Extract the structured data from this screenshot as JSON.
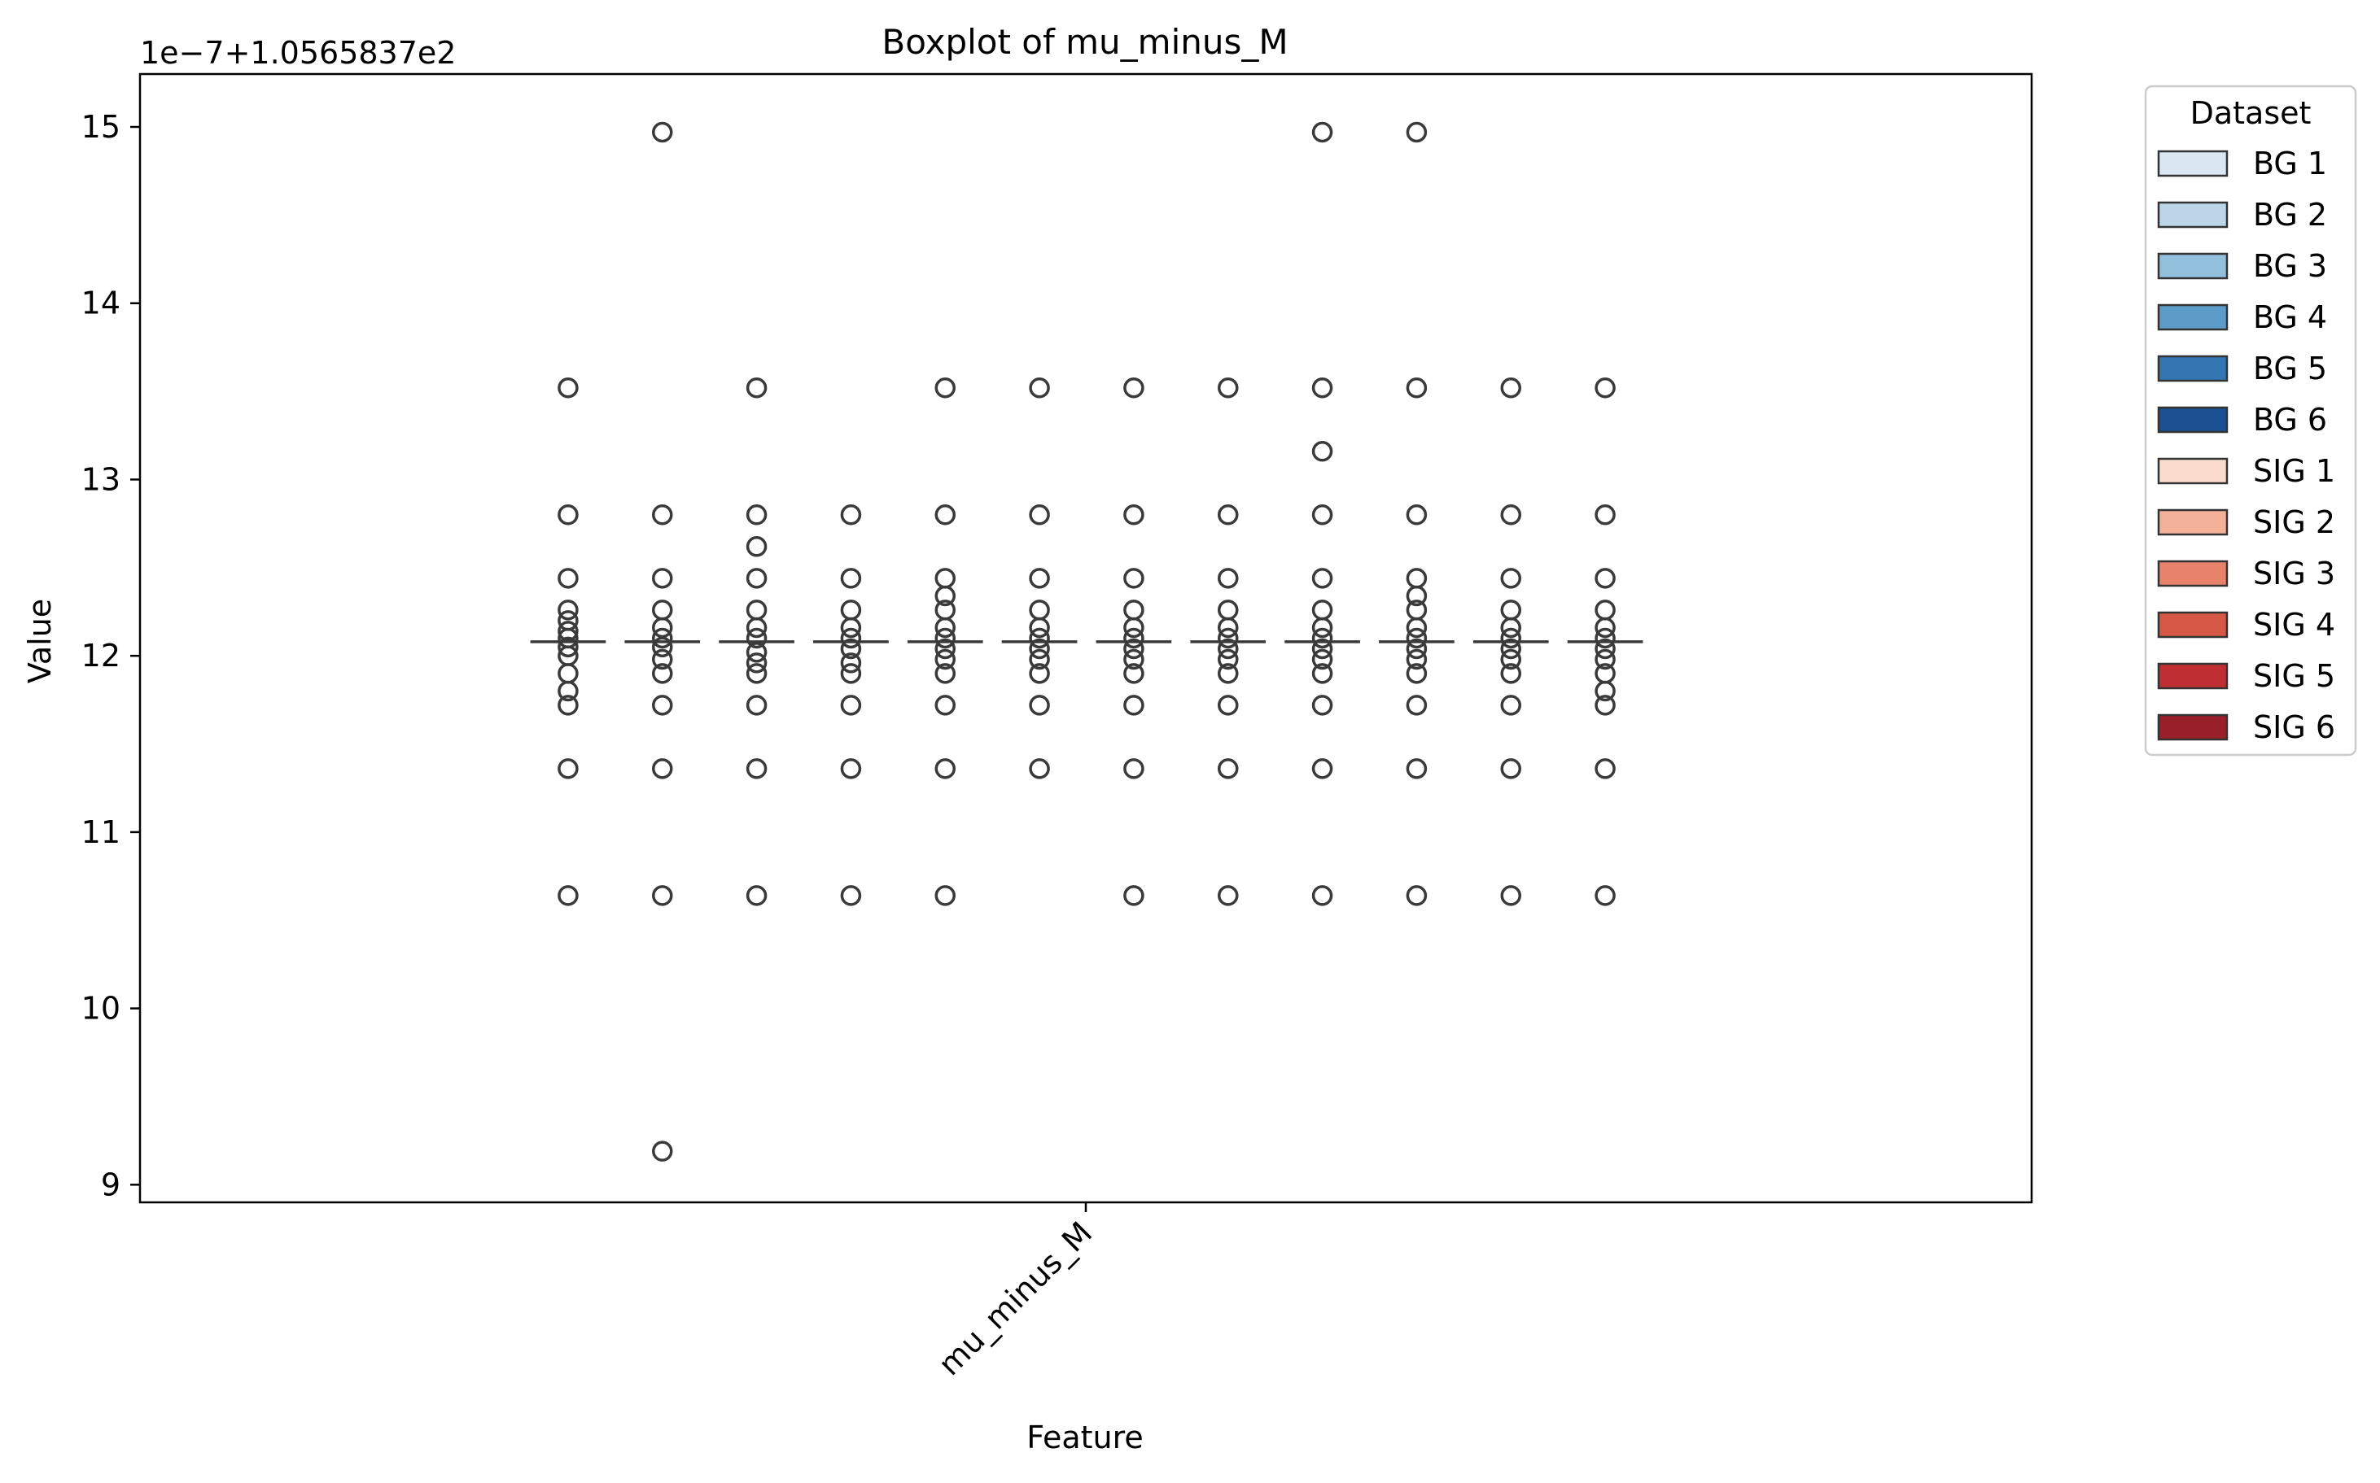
{
  "chart_data": {
    "type": "box",
    "title": "Boxplot of mu_minus_M",
    "xlabel": "Feature",
    "ylabel": "Value",
    "offset_text": "1e−7+1.0565837e2",
    "categories": [
      "mu_minus_M"
    ],
    "ylim": [
      8.9,
      15.3
    ],
    "yticks": [
      9,
      10,
      11,
      12,
      13,
      14,
      15
    ],
    "grid": false,
    "legend": {
      "title": "Dataset",
      "placement": "outside-right",
      "entries": [
        "BG 1",
        "BG 2",
        "BG 3",
        "BG 4",
        "BG 5",
        "BG 6",
        "SIG 1",
        "SIG 2",
        "SIG 3",
        "SIG 4",
        "SIG 5",
        "SIG 6"
      ]
    },
    "series": [
      {
        "name": "BG 1",
        "color": "#dbe7f3",
        "median": 12.08,
        "fliers": [
          13.52,
          12.8,
          12.44,
          12.26,
          12.2,
          12.14,
          12.1,
          12.05,
          12.0,
          11.9,
          11.8,
          11.72,
          11.36,
          10.64
        ]
      },
      {
        "name": "BG 2",
        "color": "#bcd6e8",
        "median": 12.08,
        "fliers": [
          14.97,
          12.8,
          12.44,
          12.26,
          12.16,
          12.1,
          12.05,
          11.98,
          11.9,
          11.72,
          11.36,
          10.64,
          9.19
        ]
      },
      {
        "name": "BG 3",
        "color": "#92c0dc",
        "median": 12.08,
        "fliers": [
          13.52,
          12.8,
          12.62,
          12.44,
          12.26,
          12.16,
          12.1,
          12.02,
          11.96,
          11.9,
          11.72,
          11.36,
          10.64
        ]
      },
      {
        "name": "BG 4",
        "color": "#5d9cc9",
        "median": 12.08,
        "fliers": [
          12.8,
          12.44,
          12.26,
          12.16,
          12.1,
          12.04,
          11.96,
          11.9,
          11.72,
          11.36,
          10.64
        ]
      },
      {
        "name": "BG 5",
        "color": "#3376b2",
        "median": 12.08,
        "fliers": [
          13.52,
          12.8,
          12.44,
          12.34,
          12.26,
          12.16,
          12.1,
          12.04,
          11.98,
          11.9,
          11.72,
          11.36,
          10.64
        ]
      },
      {
        "name": "BG 6",
        "color": "#1a5092",
        "median": 12.08,
        "fliers": [
          13.52,
          12.8,
          12.44,
          12.26,
          12.16,
          12.1,
          12.04,
          11.98,
          11.9,
          11.72,
          11.36
        ]
      },
      {
        "name": "SIG 1",
        "color": "#f9dccd",
        "median": 12.08,
        "fliers": [
          13.52,
          12.8,
          12.44,
          12.26,
          12.16,
          12.1,
          12.04,
          11.98,
          11.9,
          11.72,
          11.36,
          10.64
        ]
      },
      {
        "name": "SIG 2",
        "color": "#f4b19a",
        "median": 12.08,
        "fliers": [
          13.52,
          12.8,
          12.44,
          12.26,
          12.16,
          12.1,
          12.04,
          11.98,
          11.9,
          11.72,
          11.36,
          10.64
        ]
      },
      {
        "name": "SIG 3",
        "color": "#e8826a",
        "median": 12.08,
        "fliers": [
          14.97,
          13.52,
          13.16,
          12.8,
          12.44,
          12.26,
          12.16,
          12.1,
          12.04,
          11.98,
          11.9,
          11.72,
          11.36,
          10.64
        ]
      },
      {
        "name": "SIG 4",
        "color": "#d85848",
        "median": 12.08,
        "fliers": [
          14.97,
          13.52,
          12.8,
          12.44,
          12.34,
          12.26,
          12.16,
          12.1,
          12.04,
          11.98,
          11.9,
          11.72,
          11.36,
          10.64
        ]
      },
      {
        "name": "SIG 5",
        "color": "#bf2e33",
        "median": 12.08,
        "fliers": [
          13.52,
          12.8,
          12.44,
          12.26,
          12.16,
          12.1,
          12.04,
          11.98,
          11.9,
          11.72,
          11.36,
          10.64
        ]
      },
      {
        "name": "SIG 6",
        "color": "#99202a",
        "median": 12.08,
        "fliers": [
          13.52,
          12.8,
          12.44,
          12.26,
          12.16,
          12.1,
          12.04,
          11.98,
          11.9,
          11.8,
          11.72,
          11.36,
          10.64
        ]
      }
    ]
  }
}
